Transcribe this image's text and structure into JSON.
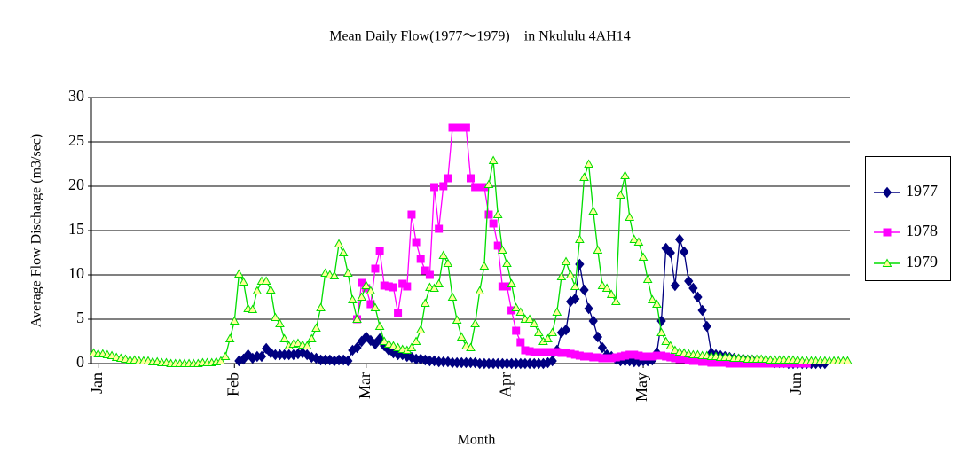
{
  "chart_data": {
    "type": "line",
    "title": "Mean Daily Flow(1977～1979)　in Nkululu 4AH14",
    "x_label": "Month",
    "y_label": "Average Flow Discharge (m3/sec)",
    "categories": [
      null,
      "Jan",
      null,
      null,
      null,
      null,
      null,
      null,
      null,
      null,
      null,
      null,
      null,
      null,
      null,
      null,
      null,
      null,
      null,
      null,
      null,
      null,
      null,
      null,
      null,
      null,
      null,
      null,
      null,
      null,
      null,
      "Feb",
      null,
      null,
      null,
      null,
      null,
      null,
      null,
      null,
      null,
      null,
      null,
      null,
      null,
      null,
      null,
      null,
      null,
      null,
      null,
      null,
      null,
      null,
      null,
      null,
      null,
      null,
      null,
      null,
      "Mar",
      null,
      null,
      null,
      null,
      null,
      null,
      null,
      null,
      null,
      null,
      null,
      null,
      null,
      null,
      null,
      null,
      null,
      null,
      null,
      null,
      null,
      null,
      null,
      null,
      null,
      null,
      null,
      null,
      null,
      null,
      "Apr",
      null,
      null,
      null,
      null,
      null,
      null,
      null,
      null,
      null,
      null,
      null,
      null,
      null,
      null,
      null,
      null,
      null,
      null,
      null,
      null,
      null,
      null,
      null,
      null,
      null,
      null,
      null,
      null,
      null,
      "May",
      null,
      null,
      null,
      null,
      null,
      null,
      null,
      null,
      null,
      null,
      null,
      null,
      null,
      null,
      null,
      null,
      null,
      null,
      null,
      null,
      null,
      null,
      null,
      null,
      null,
      null,
      null,
      null,
      null,
      null,
      null,
      null,
      null,
      "Jun",
      null,
      null,
      null,
      null,
      null,
      null,
      null,
      null,
      null,
      null,
      null
    ],
    "ylim": [
      0,
      30
    ],
    "yticks": [
      0,
      5,
      10,
      15,
      20,
      25,
      30
    ],
    "grid": true,
    "legend": "right",
    "series": [
      {
        "name": "1977",
        "color": "#000080",
        "marker": "diamond",
        "marker_fill": "#000080",
        "values": [
          null,
          null,
          null,
          null,
          null,
          null,
          null,
          null,
          null,
          null,
          null,
          null,
          null,
          null,
          null,
          null,
          null,
          null,
          null,
          null,
          null,
          null,
          null,
          null,
          null,
          null,
          null,
          null,
          null,
          null,
          null,
          null,
          0.3,
          0.5,
          1.0,
          0.6,
          0.8,
          0.8,
          1.7,
          1.2,
          1.0,
          1.0,
          1.0,
          1.0,
          1.0,
          1.1,
          1.2,
          1.0,
          0.7,
          0.6,
          0.4,
          0.4,
          0.4,
          0.3,
          0.4,
          0.4,
          0.3,
          1.5,
          1.8,
          2.5,
          3.0,
          2.6,
          2.2,
          2.8,
          2.0,
          1.5,
          1.2,
          1.0,
          1.0,
          0.8,
          0.7,
          0.5,
          0.5,
          0.4,
          0.3,
          0.3,
          0.2,
          0.2,
          0.2,
          0.1,
          0.1,
          0.1,
          0.1,
          0.1,
          0.1,
          0.0,
          0.0,
          0.0,
          0.0,
          0.0,
          0.0,
          0.0,
          0.0,
          0.0,
          0.0,
          0.0,
          0.0,
          0.0,
          0.0,
          0.0,
          0.1,
          0.3,
          1.5,
          3.5,
          3.8,
          7.0,
          7.3,
          11.2,
          8.3,
          6.2,
          4.8,
          3.0,
          1.8,
          1.0,
          0.8,
          0.5,
          0.3,
          0.3,
          0.3,
          0.2,
          0.2,
          0.3,
          0.3,
          0.4,
          1.2,
          4.8,
          13.0,
          12.5,
          8.8,
          14.0,
          12.6,
          9.3,
          8.5,
          7.5,
          6.0,
          4.2,
          1.2,
          1.0,
          0.9,
          0.8,
          0.7,
          0.6,
          0.5,
          0.5,
          0.4,
          0.4,
          0.3,
          0.3,
          0.2,
          0.2,
          0.1,
          0.1,
          0.1,
          0.0,
          0.0,
          0.0,
          0.0,
          0.0,
          0.0,
          0.0,
          0.0,
          0.0,
          null,
          null,
          null,
          null,
          null
        ]
      },
      {
        "name": "1978",
        "color": "#ff00ff",
        "marker": "square",
        "marker_fill": "#ff00ff",
        "values": [
          null,
          null,
          null,
          null,
          null,
          null,
          null,
          null,
          null,
          null,
          null,
          null,
          null,
          null,
          null,
          null,
          null,
          null,
          null,
          null,
          null,
          null,
          null,
          null,
          null,
          null,
          null,
          null,
          null,
          null,
          null,
          null,
          null,
          null,
          null,
          null,
          null,
          null,
          null,
          null,
          null,
          null,
          null,
          null,
          null,
          null,
          null,
          null,
          null,
          null,
          null,
          null,
          null,
          null,
          null,
          null,
          null,
          null,
          5.0,
          9.1,
          8.5,
          6.7,
          10.7,
          12.7,
          8.8,
          8.7,
          8.6,
          5.7,
          9.0,
          8.7,
          16.8,
          13.7,
          11.8,
          10.5,
          10.0,
          19.9,
          15.2,
          20.0,
          20.9,
          26.6,
          26.6,
          26.6,
          26.6,
          20.9,
          19.9,
          19.9,
          19.9,
          16.8,
          15.8,
          13.3,
          8.7,
          8.7,
          6.0,
          3.7,
          2.4,
          1.5,
          1.4,
          1.3,
          1.3,
          1.3,
          1.3,
          1.3,
          1.3,
          1.2,
          1.2,
          1.1,
          1.0,
          0.9,
          0.8,
          0.8,
          0.7,
          0.7,
          0.6,
          0.6,
          0.6,
          0.7,
          0.8,
          0.9,
          1.0,
          1.0,
          0.9,
          0.8,
          0.8,
          0.8,
          0.9,
          0.9,
          0.8,
          0.7,
          0.6,
          0.5,
          0.5,
          0.4,
          0.3,
          0.3,
          0.2,
          0.2,
          0.1,
          0.1,
          0.1,
          0.1,
          0.0,
          0.0,
          0.0,
          0.0,
          0.0,
          0.0,
          0.0,
          0.0,
          0.0,
          0.0,
          0.0,
          0.0,
          0.0,
          0.0,
          0.0,
          0.0,
          0.0,
          0.0,
          null,
          null,
          null,
          null,
          null,
          null,
          null,
          null,
          null
        ]
      },
      {
        "name": "1979",
        "color": "#00dd00",
        "marker": "triangle",
        "marker_fill": "#ffff99",
        "values": [
          1.2,
          1.1,
          1.1,
          1.0,
          0.9,
          0.7,
          0.6,
          0.5,
          0.4,
          0.4,
          0.3,
          0.3,
          0.3,
          0.2,
          0.2,
          0.1,
          0.1,
          0.0,
          0.0,
          0.0,
          0.0,
          0.0,
          0.0,
          0.0,
          0.1,
          0.1,
          0.1,
          0.2,
          0.3,
          0.8,
          2.8,
          4.8,
          10.1,
          9.2,
          6.2,
          6.1,
          8.2,
          9.3,
          9.3,
          8.3,
          5.2,
          4.5,
          2.8,
          2.0,
          2.2,
          2.3,
          2.1,
          2.0,
          2.8,
          4.0,
          6.3,
          10.2,
          10.0,
          9.9,
          13.5,
          12.5,
          10.2,
          7.2,
          5.0,
          7.5,
          8.8,
          8.2,
          6.3,
          4.2,
          2.5,
          2.2,
          2.0,
          1.8,
          1.6,
          1.5,
          1.8,
          2.5,
          3.8,
          6.8,
          8.6,
          8.5,
          9.0,
          12.2,
          11.3,
          7.5,
          4.9,
          3.0,
          2.0,
          1.8,
          4.5,
          8.2,
          11.0,
          20.2,
          22.9,
          16.8,
          12.8,
          11.3,
          9.0,
          6.3,
          5.8,
          5.0,
          5.0,
          4.5,
          3.5,
          2.5,
          2.8,
          3.5,
          5.8,
          9.8,
          11.5,
          10.0,
          8.7,
          14.0,
          21.0,
          22.5,
          17.2,
          12.8,
          8.8,
          8.5,
          7.8,
          7.0,
          19.0,
          21.2,
          16.5,
          14.0,
          13.7,
          12.0,
          9.5,
          7.2,
          6.7,
          3.5,
          2.5,
          2.0,
          1.5,
          1.3,
          1.2,
          1.1,
          1.0,
          1.0,
          0.9,
          0.9,
          0.8,
          0.8,
          0.7,
          0.7,
          0.7,
          0.6,
          0.6,
          0.6,
          0.5,
          0.5,
          0.5,
          0.5,
          0.5,
          0.4,
          0.4,
          0.4,
          0.4,
          0.4,
          0.4,
          0.4,
          0.3,
          0.3,
          0.3,
          0.3,
          0.3,
          0.3,
          0.3,
          0.3,
          0.3,
          0.3,
          0.3
        ]
      }
    ]
  }
}
